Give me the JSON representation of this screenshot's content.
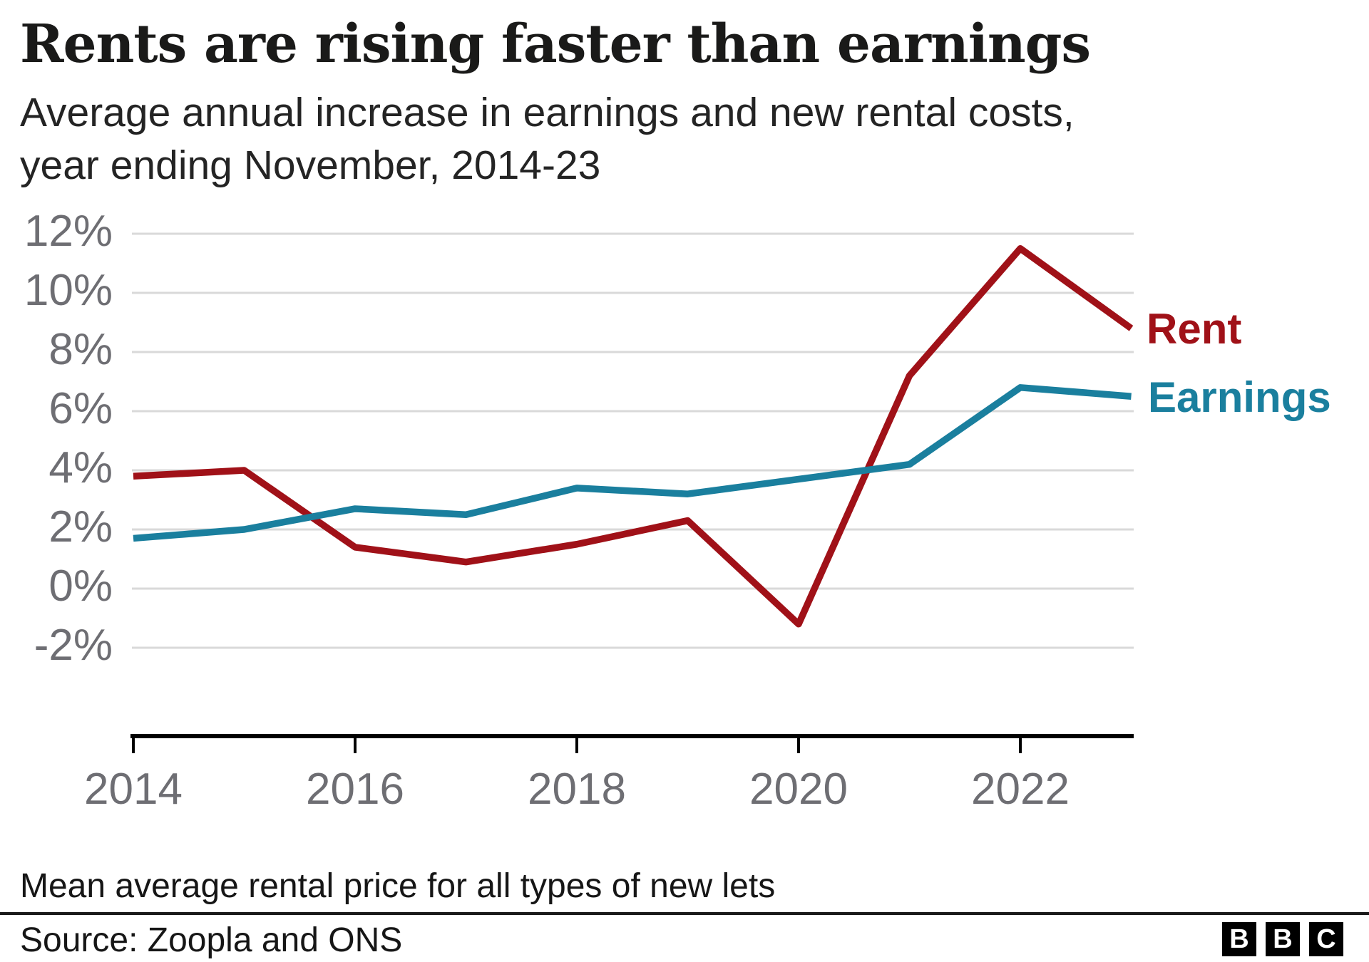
{
  "header": {
    "title": "Rents are rising faster than earnings",
    "subtitle_line1": "Average annual increase in earnings and new rental costs,",
    "subtitle_line2": "year ending November, 2014-23"
  },
  "colors": {
    "rent": "#a01118",
    "earnings": "#1a7f9e",
    "gridline": "#d9d9d9",
    "axis": "#000000",
    "tick_label": "#6e6e73",
    "title_text": "#1a1a19",
    "footer_text": "#161616"
  },
  "chart_data": {
    "type": "line",
    "title": "Rents are rising faster than earnings",
    "subtitle": "Average annual increase in earnings and new rental costs, year ending November, 2014-23",
    "x": [
      2014,
      2015,
      2016,
      2017,
      2018,
      2019,
      2020,
      2021,
      2022,
      2023
    ],
    "series": [
      {
        "name": "Rent",
        "color_key": "rent",
        "values": [
          3.8,
          4.0,
          1.4,
          0.9,
          1.5,
          2.3,
          -1.2,
          7.2,
          11.5,
          8.8
        ]
      },
      {
        "name": "Earnings",
        "color_key": "earnings",
        "values": [
          1.7,
          2.0,
          2.7,
          2.5,
          3.4,
          3.2,
          3.7,
          4.2,
          6.8,
          6.5
        ]
      }
    ],
    "yticks": [
      12,
      10,
      8,
      6,
      4,
      2,
      0,
      -2
    ],
    "ytick_labels": [
      "12%",
      "10%",
      "8%",
      "6%",
      "4%",
      "2%",
      "0%",
      "-2%"
    ],
    "xticks": [
      2014,
      2016,
      2018,
      2020,
      2022
    ],
    "xtick_labels": [
      "2014",
      "2016",
      "2018",
      "2020",
      "2022"
    ],
    "ylim": [
      -2,
      12
    ],
    "xlabel": "",
    "ylabel": "",
    "grid": "horizontal",
    "legend_position": "line-end-labels"
  },
  "footer": {
    "footnote": "Mean average rental price for all types of new lets",
    "source": "Source: Zoopla and ONS",
    "logo_letters": [
      "B",
      "B",
      "C"
    ]
  }
}
